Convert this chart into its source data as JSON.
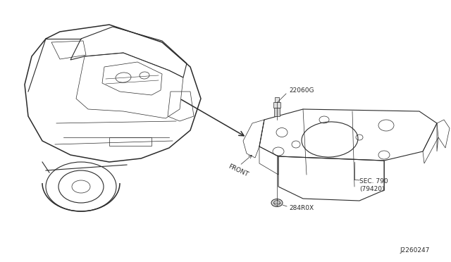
{
  "bg_color": "#ffffff",
  "line_color": "#2a2a2a",
  "label_color": "#2a2a2a",
  "diagram_id": "J2260247",
  "fig_w": 6.4,
  "fig_h": 3.72,
  "label_22060G": "22060G",
  "label_284R0X": "284R0X",
  "label_sec790": "SEC. 790",
  "label_sec790b": "(79420)",
  "label_front": "FRONT",
  "font_size": 6.5
}
